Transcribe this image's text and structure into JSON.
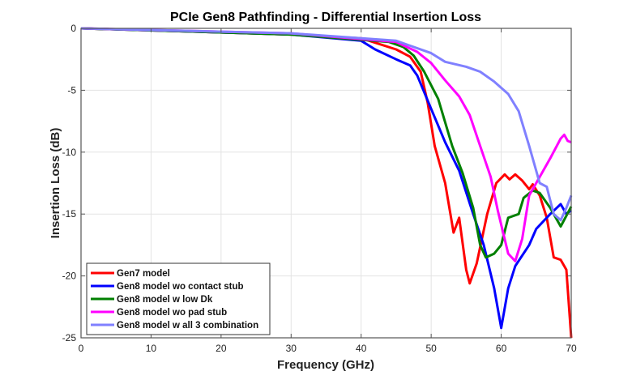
{
  "chart_data": {
    "type": "line",
    "title": "PCIe Gen8 Pathfinding - Differential Insertion Loss",
    "xlabel": "Frequency (GHz)",
    "ylabel": "Insertion Loss (dB)",
    "xlim": [
      0,
      70
    ],
    "ylim": [
      -25,
      0
    ],
    "xticks": [
      0,
      10,
      20,
      30,
      40,
      50,
      60,
      70
    ],
    "yticks": [
      0,
      -5,
      -10,
      -15,
      -20,
      -25
    ],
    "grid": true,
    "legend_position": "bottom-left",
    "series": [
      {
        "name": "Gen7 model",
        "color": "#ff0000",
        "points": [
          [
            0,
            0
          ],
          [
            30,
            -0.5
          ],
          [
            40,
            -0.8
          ],
          [
            45,
            -1.7
          ],
          [
            47,
            -2.3
          ],
          [
            48.5,
            -3.5
          ],
          [
            49.5,
            -6
          ],
          [
            50.5,
            -9.5
          ],
          [
            52,
            -12.5
          ],
          [
            53.2,
            -16.5
          ],
          [
            54,
            -15.3
          ],
          [
            55,
            -19.5
          ],
          [
            55.5,
            -20.6
          ],
          [
            56.5,
            -19
          ],
          [
            58,
            -15
          ],
          [
            59.3,
            -12.5
          ],
          [
            60.5,
            -11.8
          ],
          [
            61.2,
            -12.2
          ],
          [
            62,
            -11.8
          ],
          [
            63,
            -12.3
          ],
          [
            64,
            -13
          ],
          [
            64.5,
            -12.6
          ],
          [
            65.5,
            -13.5
          ],
          [
            66.5,
            -15.3
          ],
          [
            67.5,
            -18.5
          ],
          [
            68.5,
            -18.7
          ],
          [
            69.3,
            -19.5
          ],
          [
            70,
            -25
          ]
        ]
      },
      {
        "name": "Gen8 model wo contact stub",
        "color": "#0000ff",
        "points": [
          [
            0,
            0
          ],
          [
            30,
            -0.5
          ],
          [
            40,
            -1
          ],
          [
            42,
            -1.7
          ],
          [
            45,
            -2.5
          ],
          [
            47,
            -3
          ],
          [
            48,
            -3.8
          ],
          [
            50,
            -6.5
          ],
          [
            52,
            -9.2
          ],
          [
            54,
            -11.5
          ],
          [
            56,
            -15
          ],
          [
            57.5,
            -17.5
          ],
          [
            59,
            -21
          ],
          [
            60,
            -24.2
          ],
          [
            61,
            -21
          ],
          [
            62,
            -19.2
          ],
          [
            64,
            -17.5
          ],
          [
            65,
            -16.2
          ],
          [
            67,
            -15
          ],
          [
            68.5,
            -14.2
          ],
          [
            69.3,
            -15
          ],
          [
            70,
            -14.7
          ]
        ]
      },
      {
        "name": "Gen8 model w low Dk",
        "color": "#008000",
        "points": [
          [
            0,
            0
          ],
          [
            30,
            -0.5
          ],
          [
            44,
            -1.1
          ],
          [
            46,
            -1.5
          ],
          [
            47.5,
            -2.2
          ],
          [
            49,
            -3.5
          ],
          [
            51,
            -5.7
          ],
          [
            53,
            -9.5
          ],
          [
            54.5,
            -11.7
          ],
          [
            56,
            -14.5
          ],
          [
            57,
            -17.5
          ],
          [
            57.8,
            -18.5
          ],
          [
            59,
            -18.2
          ],
          [
            60,
            -17.5
          ],
          [
            61,
            -15.3
          ],
          [
            62.5,
            -15
          ],
          [
            63.2,
            -13.7
          ],
          [
            64.5,
            -13.1
          ],
          [
            65.5,
            -13.3
          ],
          [
            67,
            -14.5
          ],
          [
            68.5,
            -16
          ],
          [
            70,
            -14.4
          ]
        ]
      },
      {
        "name": "Gen8 model wo pad stub",
        "color": "#ff00ff",
        "points": [
          [
            0,
            0
          ],
          [
            30,
            -0.4
          ],
          [
            45,
            -1.1
          ],
          [
            48,
            -1.9
          ],
          [
            50,
            -2.8
          ],
          [
            52,
            -4.2
          ],
          [
            54,
            -5.5
          ],
          [
            55.5,
            -7
          ],
          [
            57,
            -9.5
          ],
          [
            58.5,
            -12
          ],
          [
            59.5,
            -14.7
          ],
          [
            61,
            -18.2
          ],
          [
            62,
            -18.8
          ],
          [
            63,
            -17
          ],
          [
            64,
            -13.5
          ],
          [
            65.5,
            -12
          ],
          [
            67,
            -10.5
          ],
          [
            68.5,
            -8.9
          ],
          [
            69,
            -8.6
          ],
          [
            69.5,
            -9.1
          ],
          [
            70,
            -9.2
          ]
        ]
      },
      {
        "name": "Gen8 model w all 3 combination",
        "color": "#8080ff",
        "points": [
          [
            0,
            0
          ],
          [
            30,
            -0.4
          ],
          [
            45,
            -1
          ],
          [
            50,
            -2
          ],
          [
            52,
            -2.7
          ],
          [
            55,
            -3.1
          ],
          [
            57,
            -3.5
          ],
          [
            59,
            -4.3
          ],
          [
            61,
            -5.3
          ],
          [
            62.5,
            -6.7
          ],
          [
            64,
            -9.5
          ],
          [
            65.5,
            -12.5
          ],
          [
            66.5,
            -12.8
          ],
          [
            67.5,
            -15
          ],
          [
            68.5,
            -15.5
          ],
          [
            69.3,
            -14.5
          ],
          [
            70,
            -13.5
          ]
        ]
      }
    ]
  }
}
